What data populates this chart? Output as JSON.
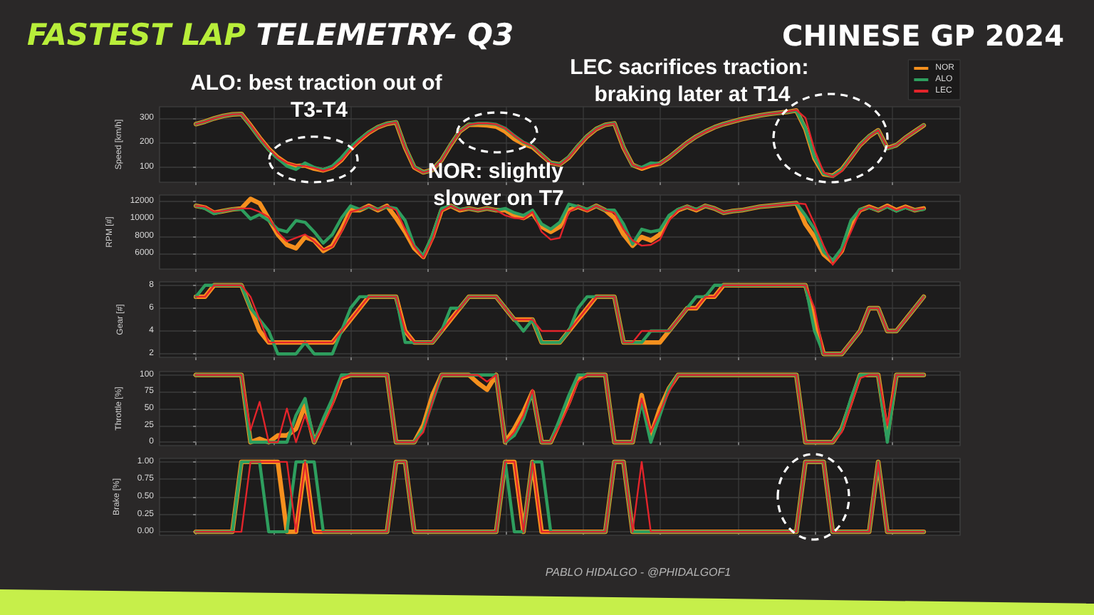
{
  "chart_data": [
    {
      "type": "line",
      "title": "FASTEST LAP TELEMETRY- Q3",
      "subtitle": "CHINESE GP 2024",
      "annotations": [
        "ALO: best traction out of T3-T4",
        "NOR: slightly slower on T7",
        "LEC sacrifices traction: braking later at T14",
        "PABLO HIDALGO - @PHIDALGOF1"
      ],
      "ylabel": "Speed [km/h]",
      "categories": [
        null,
        null,
        null,
        null,
        null,
        null,
        null,
        null,
        null,
        null,
        null,
        null,
        null,
        null,
        null,
        null,
        null,
        null,
        null,
        null,
        null,
        null,
        null,
        null,
        null,
        null,
        null,
        null,
        null,
        null,
        null,
        null,
        null,
        null,
        null,
        null,
        null,
        null,
        null,
        null,
        null,
        null,
        null,
        null,
        null,
        null,
        null,
        null,
        null,
        null,
        null,
        null,
        null,
        null,
        null,
        null,
        null,
        null,
        null,
        null,
        null,
        null,
        null,
        null,
        null,
        null,
        null,
        null,
        null,
        null,
        null,
        null,
        null,
        null,
        null,
        null,
        null,
        null,
        null,
        null,
        null
      ],
      "series": [
        {
          "name": "NOR",
          "color": "#f5901e",
          "values": [
            275,
            285,
            298,
            308,
            314,
            316,
            270,
            220,
            175,
            140,
            115,
            105,
            108,
            95,
            88,
            100,
            130,
            175,
            210,
            240,
            262,
            276,
            282,
            180,
            100,
            80,
            90,
            130,
            190,
            245,
            272,
            272,
            270,
            265,
            245,
            215,
            195,
            182,
            150,
            118,
            112,
            140,
            185,
            225,
            255,
            272,
            278,
            180,
            110,
            95,
            108,
            115,
            140,
            170,
            200,
            225,
            245,
            262,
            275,
            285,
            295,
            303,
            310,
            316,
            320,
            324,
            330,
            255,
            135,
            72,
            66,
            92,
            140,
            190,
            225,
            250,
            178,
            190,
            220,
            245,
            270
          ]
        },
        {
          "name": "ALO",
          "color": "#2e9e5e",
          "values": [
            275,
            285,
            298,
            308,
            314,
            316,
            268,
            218,
            172,
            136,
            105,
            92,
            118,
            100,
            90,
            105,
            140,
            182,
            214,
            242,
            263,
            277,
            283,
            182,
            102,
            80,
            90,
            130,
            192,
            246,
            273,
            278,
            278,
            274,
            258,
            228,
            202,
            186,
            152,
            118,
            112,
            142,
            187,
            226,
            256,
            272,
            278,
            182,
            108,
            100,
            118,
            115,
            140,
            170,
            200,
            225,
            245,
            262,
            275,
            285,
            295,
            303,
            310,
            316,
            320,
            324,
            330,
            258,
            140,
            75,
            64,
            90,
            140,
            190,
            226,
            250,
            176,
            190,
            220,
            245,
            271
          ]
        },
        {
          "name": "LEC",
          "color": "#e3242b",
          "values": [
            275,
            285,
            298,
            308,
            314,
            316,
            272,
            222,
            176,
            140,
            118,
            108,
            105,
            97,
            86,
            98,
            128,
            172,
            208,
            238,
            261,
            275,
            282,
            178,
            98,
            79,
            90,
            128,
            190,
            244,
            272,
            278,
            278,
            274,
            258,
            228,
            202,
            186,
            150,
            116,
            110,
            140,
            184,
            224,
            254,
            271,
            277,
            178,
            110,
            95,
            108,
            114,
            140,
            170,
            200,
            224,
            244,
            261,
            274,
            284,
            294,
            302,
            310,
            316,
            320,
            325,
            332,
            300,
            170,
            80,
            62,
            85,
            138,
            188,
            224,
            250,
            178,
            190,
            220,
            245,
            270
          ]
        }
      ],
      "ylim": [
        40,
        345
      ],
      "yticks": [
        100,
        200,
        300
      ],
      "grid": true,
      "legend": "top right",
      "tick_labels": "y"
    },
    {
      "type": "line",
      "ylabel": "RPM [#]",
      "categories": [
        null,
        null,
        null,
        null,
        null,
        null,
        null,
        null,
        null,
        null,
        null,
        null,
        null,
        null,
        null,
        null,
        null,
        null,
        null,
        null,
        null,
        null,
        null,
        null,
        null,
        null,
        null,
        null,
        null,
        null,
        null,
        null,
        null,
        null,
        null,
        null,
        null,
        null,
        null,
        null,
        null,
        null,
        null,
        null,
        null,
        null,
        null,
        null,
        null,
        null,
        null,
        null,
        null,
        null,
        null,
        null,
        null,
        null,
        null,
        null,
        null,
        null,
        null,
        null,
        null,
        null,
        null,
        null,
        null,
        null,
        null,
        null,
        null,
        null,
        null,
        null,
        null,
        null,
        null,
        null,
        null
      ],
      "series": [
        {
          "color": "#f5901e",
          "values": [
            11500,
            11300,
            10700,
            10900,
            11100,
            11200,
            12300,
            11800,
            10000,
            8200,
            7000,
            6600,
            7900,
            7500,
            6300,
            6900,
            8800,
            11000,
            11000,
            11500,
            11000,
            11500,
            10100,
            8500,
            6600,
            5600,
            7900,
            11000,
            11500,
            11000,
            11200,
            11000,
            11200,
            11000,
            11000,
            10400,
            10100,
            10700,
            9100,
            8500,
            9100,
            11000,
            11400,
            11000,
            11500,
            11000,
            10100,
            8200,
            6900,
            7900,
            7500,
            8200,
            10100,
            11000,
            11400,
            11000,
            11500,
            11200,
            10700,
            10900,
            11000,
            11200,
            11400,
            11500,
            11600,
            11700,
            11800,
            9400,
            7900,
            5900,
            5000,
            6300,
            9400,
            11000,
            11400,
            11000,
            11500,
            11000,
            11400,
            11000,
            11200
          ]
        },
        {
          "color": "#2e9e5e",
          "values": [
            11500,
            11200,
            10600,
            10900,
            11100,
            11100,
            10000,
            10500,
            9800,
            8800,
            8500,
            9800,
            9600,
            8500,
            7200,
            8200,
            10100,
            11500,
            11100,
            11400,
            11100,
            11400,
            11200,
            9800,
            6900,
            5700,
            8100,
            11200,
            11500,
            11100,
            11200,
            11000,
            11200,
            11000,
            11200,
            10700,
            10400,
            11000,
            9400,
            8800,
            9600,
            11700,
            11400,
            11100,
            11500,
            11000,
            11000,
            9400,
            7100,
            8800,
            8500,
            8700,
            10400,
            11100,
            11400,
            11100,
            11500,
            11200,
            10700,
            10900,
            11000,
            11200,
            11400,
            11500,
            11600,
            11700,
            11800,
            10400,
            8800,
            6200,
            5200,
            6600,
            9800,
            11100,
            11300,
            11000,
            11400,
            10900,
            11300,
            11000,
            11100
          ]
        },
        {
          "color": "#e3242b",
          "values": [
            11500,
            11400,
            10800,
            10900,
            11100,
            11200,
            11200,
            10800,
            10200,
            8400,
            7400,
            7800,
            8200,
            7400,
            6400,
            6800,
            8500,
            10800,
            11100,
            11500,
            11000,
            11500,
            11000,
            8800,
            6800,
            5500,
            7600,
            10900,
            11500,
            11000,
            11200,
            11000,
            11200,
            11000,
            10400,
            10100,
            10000,
            10800,
            8500,
            7600,
            7800,
            10800,
            11400,
            10900,
            11500,
            11000,
            10700,
            8800,
            7500,
            6900,
            7000,
            7600,
            9800,
            11000,
            11400,
            11000,
            11500,
            11200,
            10700,
            10900,
            11000,
            11200,
            11400,
            11500,
            11600,
            11700,
            11800,
            11700,
            9400,
            6900,
            4700,
            6200,
            8500,
            10900,
            11400,
            11000,
            11500,
            11000,
            11400,
            11000,
            11200
          ]
        }
      ],
      "ylim": [
        4200,
        12750
      ],
      "yticks": [
        6000,
        8000,
        10000,
        12000
      ],
      "grid": true,
      "tick_labels": "y"
    },
    {
      "type": "line",
      "ylabel": "Gear [#]",
      "categories": [
        null,
        null,
        null,
        null,
        null,
        null,
        null,
        null,
        null,
        null,
        null,
        null,
        null,
        null,
        null,
        null,
        null,
        null,
        null,
        null,
        null,
        null,
        null,
        null,
        null,
        null,
        null,
        null,
        null,
        null,
        null,
        null,
        null,
        null,
        null,
        null,
        null,
        null,
        null,
        null,
        null,
        null,
        null,
        null,
        null,
        null,
        null,
        null,
        null,
        null,
        null,
        null,
        null,
        null,
        null,
        null,
        null,
        null,
        null,
        null,
        null,
        null,
        null,
        null,
        null,
        null,
        null,
        null,
        null,
        null,
        null,
        null,
        null,
        null,
        null,
        null,
        null,
        null,
        null,
        null,
        null
      ],
      "series": [
        {
          "color": "#f5901e",
          "values": [
            7,
            7,
            8,
            8,
            8,
            8,
            6,
            4,
            3,
            3,
            3,
            3,
            3,
            3,
            3,
            3,
            4,
            5,
            6,
            7,
            7,
            7,
            7,
            4,
            3,
            3,
            3,
            4,
            5,
            6,
            7,
            7,
            7,
            7,
            6,
            5,
            5,
            5,
            3,
            3,
            3,
            4,
            5,
            6,
            7,
            7,
            7,
            3,
            3,
            3,
            3,
            3,
            4,
            5,
            6,
            6,
            7,
            7,
            8,
            8,
            8,
            8,
            8,
            8,
            8,
            8,
            8,
            8,
            5,
            2,
            2,
            2,
            3,
            4,
            6,
            6,
            4,
            4,
            5,
            6,
            7
          ]
        },
        {
          "color": "#2e9e5e",
          "values": [
            7,
            8,
            8,
            8,
            8,
            8,
            6,
            5,
            4,
            2,
            2,
            2,
            3,
            2,
            2,
            2,
            4,
            6,
            7,
            7,
            7,
            7,
            7,
            3,
            3,
            3,
            3,
            4,
            6,
            6,
            7,
            7,
            7,
            7,
            6,
            5,
            4,
            5,
            3,
            3,
            3,
            4,
            6,
            7,
            7,
            7,
            7,
            3,
            3,
            3,
            4,
            4,
            4,
            5,
            6,
            7,
            7,
            8,
            8,
            8,
            8,
            8,
            8,
            8,
            8,
            8,
            8,
            8,
            4,
            2,
            2,
            2,
            3,
            4,
            6,
            6,
            4,
            4,
            5,
            6,
            7
          ]
        },
        {
          "color": "#e3242b",
          "values": [
            7,
            7,
            8,
            8,
            8,
            8,
            7,
            5,
            3,
            3,
            3,
            3,
            3,
            3,
            3,
            3,
            4,
            5,
            6,
            7,
            7,
            7,
            7,
            4,
            3,
            3,
            3,
            4,
            5,
            6,
            7,
            7,
            7,
            7,
            6,
            5,
            5,
            5,
            4,
            4,
            4,
            4,
            5,
            6,
            7,
            7,
            7,
            3,
            3,
            4,
            4,
            4,
            4,
            5,
            6,
            6,
            7,
            7,
            8,
            8,
            8,
            8,
            8,
            8,
            8,
            8,
            8,
            8,
            6,
            2,
            2,
            2,
            3,
            4,
            6,
            6,
            4,
            4,
            5,
            6,
            7
          ]
        }
      ],
      "ylim": [
        1.7,
        8.3
      ],
      "yticks": [
        2,
        4,
        6,
        8
      ],
      "grid": true,
      "tick_labels": "y"
    },
    {
      "type": "line",
      "ylabel": "Throttle [%]",
      "categories": [
        null,
        null,
        null,
        null,
        null,
        null,
        null,
        null,
        null,
        null,
        null,
        null,
        null,
        null,
        null,
        null,
        null,
        null,
        null,
        null,
        null,
        null,
        null,
        null,
        null,
        null,
        null,
        null,
        null,
        null,
        null,
        null,
        null,
        null,
        null,
        null,
        null,
        null,
        null,
        null,
        null,
        null,
        null,
        null,
        null,
        null,
        null,
        null,
        null,
        null,
        null,
        null,
        null,
        null,
        null,
        null,
        null,
        null,
        null,
        null,
        null,
        null,
        null,
        null,
        null,
        null,
        null,
        null,
        null,
        null,
        null,
        null,
        null,
        null,
        null,
        null,
        null,
        null,
        null,
        null,
        null
      ],
      "series": [
        {
          "color": "#f5901e",
          "values": [
            100,
            100,
            100,
            100,
            100,
            100,
            0,
            5,
            0,
            10,
            10,
            20,
            55,
            0,
            30,
            60,
            95,
            100,
            100,
            100,
            100,
            100,
            0,
            0,
            0,
            25,
            70,
            100,
            100,
            100,
            100,
            88,
            78,
            100,
            0,
            20,
            45,
            75,
            0,
            0,
            30,
            60,
            95,
            100,
            100,
            100,
            0,
            0,
            0,
            70,
            10,
            50,
            80,
            100,
            100,
            100,
            100,
            100,
            100,
            100,
            100,
            100,
            100,
            100,
            100,
            100,
            100,
            0,
            0,
            0,
            0,
            20,
            60,
            100,
            100,
            100,
            10,
            100,
            100,
            100,
            100
          ]
        },
        {
          "color": "#2e9e5e",
          "values": [
            100,
            100,
            100,
            100,
            100,
            100,
            0,
            0,
            0,
            0,
            0,
            40,
            65,
            0,
            35,
            65,
            100,
            100,
            100,
            100,
            100,
            100,
            0,
            0,
            0,
            20,
            60,
            100,
            100,
            100,
            100,
            100,
            100,
            100,
            0,
            10,
            35,
            75,
            0,
            0,
            35,
            70,
            100,
            100,
            100,
            100,
            0,
            0,
            0,
            60,
            0,
            40,
            80,
            100,
            100,
            100,
            100,
            100,
            100,
            100,
            100,
            100,
            100,
            100,
            100,
            100,
            100,
            0,
            0,
            0,
            0,
            20,
            65,
            100,
            100,
            100,
            0,
            100,
            100,
            100,
            100
          ]
        },
        {
          "color": "#e3242b",
          "values": [
            100,
            100,
            100,
            100,
            100,
            100,
            18,
            60,
            0,
            0,
            50,
            0,
            40,
            0,
            25,
            55,
            95,
            100,
            100,
            100,
            100,
            100,
            0,
            0,
            0,
            15,
            60,
            100,
            100,
            100,
            100,
            100,
            90,
            100,
            0,
            15,
            40,
            78,
            0,
            0,
            25,
            55,
            90,
            100,
            100,
            100,
            0,
            0,
            0,
            65,
            15,
            45,
            75,
            100,
            100,
            100,
            100,
            100,
            100,
            100,
            100,
            100,
            100,
            100,
            100,
            100,
            100,
            0,
            0,
            0,
            0,
            15,
            55,
            95,
            100,
            100,
            25,
            100,
            100,
            100,
            100
          ]
        }
      ],
      "ylim": [
        -5,
        105
      ],
      "yticks": [
        0,
        25,
        50,
        75,
        100
      ],
      "grid": true,
      "tick_labels": "y"
    },
    {
      "type": "line",
      "ylabel": "Brake [%]",
      "categories": [
        null,
        null,
        null,
        null,
        null,
        null,
        null,
        null,
        null,
        null,
        null,
        null,
        null,
        null,
        null,
        null,
        null,
        null,
        null,
        null,
        null,
        null,
        null,
        null,
        null,
        null,
        null,
        null,
        null,
        null,
        null,
        null,
        null,
        null,
        null,
        null,
        null,
        null,
        null,
        null,
        null,
        null,
        null,
        null,
        null,
        null,
        null,
        null,
        null,
        null,
        null,
        null,
        null,
        null,
        null,
        null,
        null,
        null,
        null,
        null,
        null,
        null,
        null,
        null,
        null,
        null,
        null,
        null,
        null,
        null,
        null,
        null,
        null,
        null,
        null,
        null,
        null,
        null,
        null,
        null,
        null
      ],
      "series": [
        {
          "color": "#f5901e",
          "values": [
            0,
            0,
            0,
            0,
            0,
            1,
            1,
            1,
            1,
            1,
            0,
            0,
            1,
            0,
            0,
            0,
            0,
            0,
            0,
            0,
            0,
            0,
            1,
            1,
            0,
            0,
            0,
            0,
            0,
            0,
            0,
            0,
            0,
            0,
            1,
            1,
            0,
            1,
            0,
            0,
            0,
            0,
            0,
            0,
            0,
            0,
            1,
            1,
            0,
            0,
            0,
            0,
            0,
            0,
            0,
            0,
            0,
            0,
            0,
            0,
            0,
            0,
            0,
            0,
            0,
            0,
            0,
            1,
            1,
            1,
            0,
            0,
            0,
            0,
            0,
            1,
            0,
            0,
            0,
            0,
            0
          ]
        },
        {
          "color": "#2e9e5e",
          "values": [
            0,
            0,
            0,
            0,
            0,
            1,
            1,
            1,
            0,
            0,
            0,
            1,
            1,
            1,
            0,
            0,
            0,
            0,
            0,
            0,
            0,
            0,
            1,
            1,
            0,
            0,
            0,
            0,
            0,
            0,
            0,
            0,
            0,
            0,
            1,
            0,
            0,
            1,
            1,
            0,
            0,
            0,
            0,
            0,
            0,
            0,
            1,
            1,
            0,
            0,
            0,
            0,
            0,
            0,
            0,
            0,
            0,
            0,
            0,
            0,
            0,
            0,
            0,
            0,
            0,
            0,
            0,
            1,
            1,
            1,
            0,
            0,
            0,
            0,
            0,
            1,
            0,
            0,
            0,
            0,
            0
          ]
        },
        {
          "color": "#e3242b",
          "values": [
            0,
            0,
            0,
            0,
            0,
            0,
            1,
            1,
            1,
            1,
            1,
            0,
            1,
            0,
            0,
            0,
            0,
            0,
            0,
            0,
            0,
            0,
            1,
            1,
            0,
            0,
            0,
            0,
            0,
            0,
            0,
            0,
            0,
            0,
            1,
            1,
            0,
            1,
            0,
            0,
            0,
            0,
            0,
            0,
            0,
            0,
            1,
            1,
            0,
            1,
            0,
            0,
            0,
            0,
            0,
            0,
            0,
            0,
            0,
            0,
            0,
            0,
            0,
            0,
            0,
            0,
            0,
            1,
            1,
            1,
            0,
            0,
            0,
            0,
            0,
            1,
            0,
            0,
            0,
            0,
            0
          ]
        }
      ],
      "ylim": [
        -0.05,
        1.05
      ],
      "yticks": [
        {
          "value": 0,
          "label": "0.00"
        },
        {
          "value": 0.25,
          "label": "0.25"
        },
        {
          "value": 0.5,
          "label": "0.50"
        },
        {
          "value": 0.75,
          "label": "0.75"
        },
        {
          "value": 1,
          "label": "1.00"
        }
      ],
      "grid": true,
      "tick_labels": "y"
    }
  ]
}
